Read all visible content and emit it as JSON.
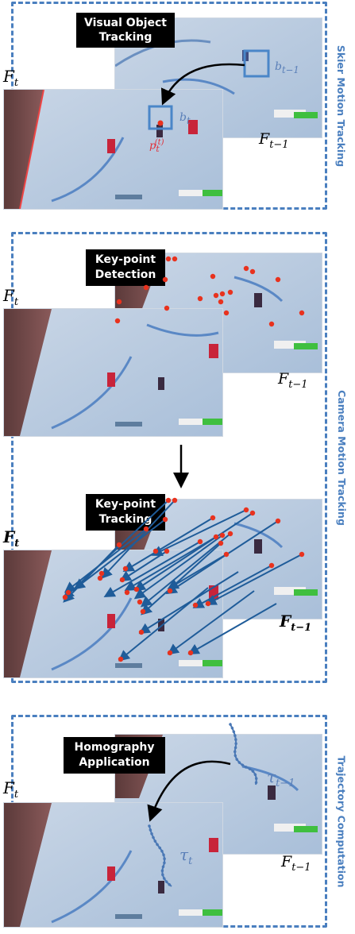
{
  "sections": [
    {
      "side_label": "Skier Motion Tracking",
      "tag": "Visual Object Tracking",
      "frame_t": "F",
      "frame_t_sub": "t",
      "frame_prev": "F",
      "frame_prev_sub": "t−1",
      "box_prev": "b",
      "box_prev_sub": "t−1",
      "box_cur": "b",
      "box_cur_sub": "t",
      "point": "p",
      "point_sub": "t",
      "point_sup": "(t)"
    },
    {
      "side_label": "Camera Motion Tracking",
      "tag_detect": "Key-point Detection",
      "tag_track": "Key-point Tracking",
      "frame_t": "F",
      "frame_t_sub": "t",
      "frame_prev": "F",
      "frame_prev_sub": "t−1"
    },
    {
      "side_label": "Trajectory Computation",
      "tag": "Homography Application",
      "frame_t": "F",
      "frame_t_sub": "t",
      "frame_prev": "F",
      "frame_prev_sub": "t−1",
      "traj_prev": "τ",
      "traj_prev_sub": "t−1",
      "traj_cur": "τ",
      "traj_cur_sub": "t"
    }
  ],
  "colors": {
    "accent": "#4a7fbf",
    "keypoint": "#e8321e",
    "arrow": "#1f5c99",
    "trajectory": "#4a78b5"
  }
}
